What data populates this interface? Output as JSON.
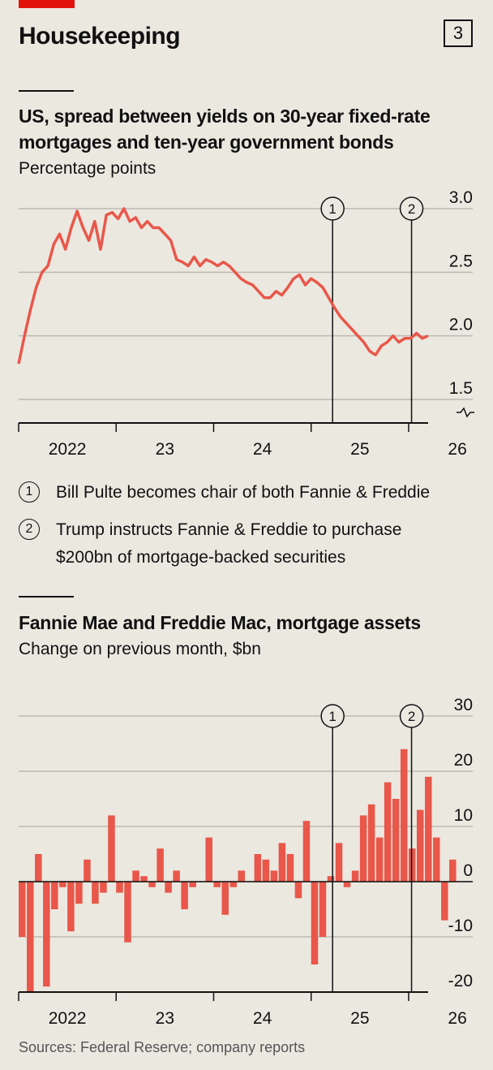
{
  "header": {
    "title": "Housekeeping",
    "chart_number": "3"
  },
  "chart_data": [
    {
      "type": "line",
      "title": "US, spread between yields on 30-year fixed-rate mortgages and ten-year government bonds",
      "ylabel": "Percentage points",
      "ylim": [
        1.5,
        3.0
      ],
      "yticks": [
        "3.0",
        "2.5",
        "2.0",
        "1.5"
      ],
      "xticks": [
        "2022",
        "23",
        "24",
        "25",
        "26"
      ],
      "grid": true,
      "color": "#e9574a",
      "series": [
        {
          "x": [
            2022.0,
            2022.06,
            2022.12,
            2022.18,
            2022.24,
            2022.3,
            2022.36,
            2022.42,
            2022.48,
            2022.54,
            2022.6,
            2022.66,
            2022.72,
            2022.78,
            2022.84,
            2022.9,
            2022.96,
            2023.02,
            2023.08,
            2023.14,
            2023.2,
            2023.26,
            2023.32,
            2023.38,
            2023.44,
            2023.5,
            2023.56,
            2023.62,
            2023.68,
            2023.74,
            2023.8,
            2023.86,
            2023.92,
            2023.98,
            2024.04,
            2024.1,
            2024.16,
            2024.22,
            2024.28,
            2024.34,
            2024.4,
            2024.46,
            2024.52,
            2024.58,
            2024.64,
            2024.7,
            2024.76,
            2024.82,
            2024.88,
            2024.94,
            2025.0,
            2025.06,
            2025.12,
            2025.18,
            2025.24,
            2025.3,
            2025.36,
            2025.42,
            2025.48,
            2025.54,
            2025.6,
            2025.66,
            2025.72,
            2025.78,
            2025.84,
            2025.9,
            2025.96,
            2026.02,
            2026.08,
            2026.14,
            2026.2
          ],
          "y": [
            1.78,
            2.0,
            2.2,
            2.38,
            2.5,
            2.55,
            2.72,
            2.8,
            2.68,
            2.85,
            2.98,
            2.85,
            2.75,
            2.9,
            2.68,
            2.95,
            2.97,
            2.92,
            3.0,
            2.9,
            2.93,
            2.85,
            2.9,
            2.85,
            2.85,
            2.8,
            2.75,
            2.6,
            2.58,
            2.55,
            2.62,
            2.55,
            2.6,
            2.58,
            2.55,
            2.58,
            2.55,
            2.5,
            2.45,
            2.42,
            2.4,
            2.35,
            2.3,
            2.3,
            2.35,
            2.32,
            2.38,
            2.45,
            2.48,
            2.4,
            2.45,
            2.42,
            2.38,
            2.3,
            2.22,
            2.15,
            2.1,
            2.05,
            2.0,
            1.95,
            1.88,
            1.85,
            1.92,
            1.95,
            2.0,
            1.95,
            1.98,
            1.98,
            2.02,
            1.98,
            2.0
          ]
        }
      ],
      "annotations": [
        {
          "label": "1",
          "x": 2025.22
        },
        {
          "label": "2",
          "x": 2026.03
        }
      ]
    },
    {
      "type": "bar",
      "title": "Fannie Mae and Freddie Mac, mortgage assets",
      "ylabel": "Change on previous month, $bn",
      "ylim": [
        -20,
        30
      ],
      "yticks": [
        "30",
        "20",
        "10",
        "0",
        "-10",
        "-20"
      ],
      "xticks": [
        "2022",
        "23",
        "24",
        "25",
        "26"
      ],
      "grid": true,
      "color": "#e9574a",
      "x_start": 2022.0,
      "values": [
        -10,
        -20,
        5,
        -19,
        -5,
        -1,
        -9,
        -4,
        4,
        -4,
        -2,
        12,
        -2,
        -11,
        2,
        1,
        -1,
        6,
        -2,
        2,
        -5,
        -1,
        0,
        8,
        -1,
        -6,
        -1,
        2,
        0,
        5,
        4,
        2,
        7,
        5,
        -3,
        11,
        -15,
        -10,
        1,
        7,
        -1,
        2,
        12,
        14,
        8,
        18,
        15,
        24,
        6,
        13,
        19,
        8,
        -7,
        4
      ],
      "annotations": [
        {
          "label": "1",
          "x": 2025.22
        },
        {
          "label": "2",
          "x": 2026.03
        }
      ]
    }
  ],
  "notes": [
    {
      "num": "1",
      "text": "Bill Pulte becomes chair of both Fannie & Freddie"
    },
    {
      "num": "2",
      "text_line1": "Trump instructs Fannie & Freddie to purchase",
      "text_line2": "$200bn of mortgage-backed securities"
    }
  ],
  "source": "Sources: Federal Reserve; company reports"
}
